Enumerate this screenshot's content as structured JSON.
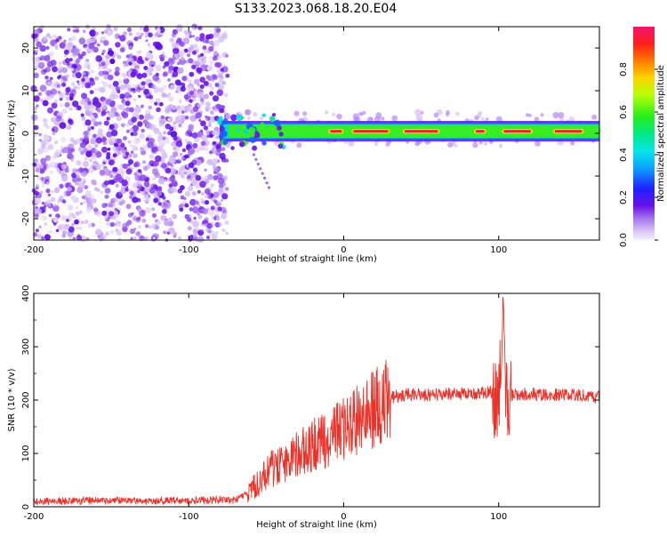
{
  "title": "S133.2023.068.18.20.E04",
  "chart_data": [
    {
      "type": "heatmap",
      "xlabel": "Height of straight line (km)",
      "ylabel": "Frequency (Hz)",
      "xlim": [
        -200,
        165
      ],
      "ylim": [
        -25,
        25
      ],
      "x_ticks": [
        -200,
        -100,
        0,
        100
      ],
      "x_tick_labels": [
        "-200",
        "-100",
        "0",
        "100"
      ],
      "y_ticks": [
        -20,
        -10,
        0,
        10,
        20
      ],
      "y_tick_labels": [
        "-20",
        "-10",
        "0",
        "10",
        "20"
      ],
      "colorbar": {
        "label": "Normalized spectral amplitude",
        "range": [
          0,
          1
        ],
        "ticks": [
          0,
          0.2,
          0.4,
          0.6,
          0.8
        ],
        "tick_labels": [
          "0.0",
          "0.2",
          "0.4",
          "0.6",
          "0.8"
        ]
      },
      "regions": [
        {
          "name": "noise",
          "x_range": [
            -200,
            -75
          ],
          "f_range": [
            -25,
            25
          ],
          "amplitude": 0.15
        },
        {
          "name": "signal-band",
          "x_range": [
            -80,
            165
          ],
          "f_range": [
            -1.5,
            2.5
          ],
          "amplitude": 0.9
        }
      ]
    },
    {
      "type": "line",
      "xlabel": "Height of straight line (km)",
      "ylabel": "SNR (10 * v/v)",
      "xlim": [
        -200,
        165
      ],
      "ylim": [
        0,
        400
      ],
      "x_ticks": [
        -200,
        -100,
        0,
        100
      ],
      "x_tick_labels": [
        "-200",
        "-100",
        "0",
        "100"
      ],
      "y_ticks": [
        0,
        100,
        200,
        300,
        400
      ],
      "y_tick_labels": [
        "0",
        "100",
        "200",
        "300",
        "400"
      ],
      "series": [
        {
          "name": "SNR",
          "color": "#e8322a",
          "x": [
            -200,
            -160,
            -120,
            -90,
            -70,
            -62,
            -55,
            -48,
            -40,
            -30,
            -20,
            -10,
            0,
            10,
            20,
            30,
            40,
            60,
            80,
            95,
            100,
            103,
            105,
            110,
            130,
            150,
            165
          ],
          "y": [
            10,
            12,
            11,
            12,
            13,
            25,
            45,
            70,
            80,
            100,
            115,
            125,
            145,
            165,
            185,
            205,
            210,
            210,
            212,
            215,
            200,
            340,
            200,
            212,
            210,
            210,
            205
          ]
        }
      ]
    }
  ]
}
